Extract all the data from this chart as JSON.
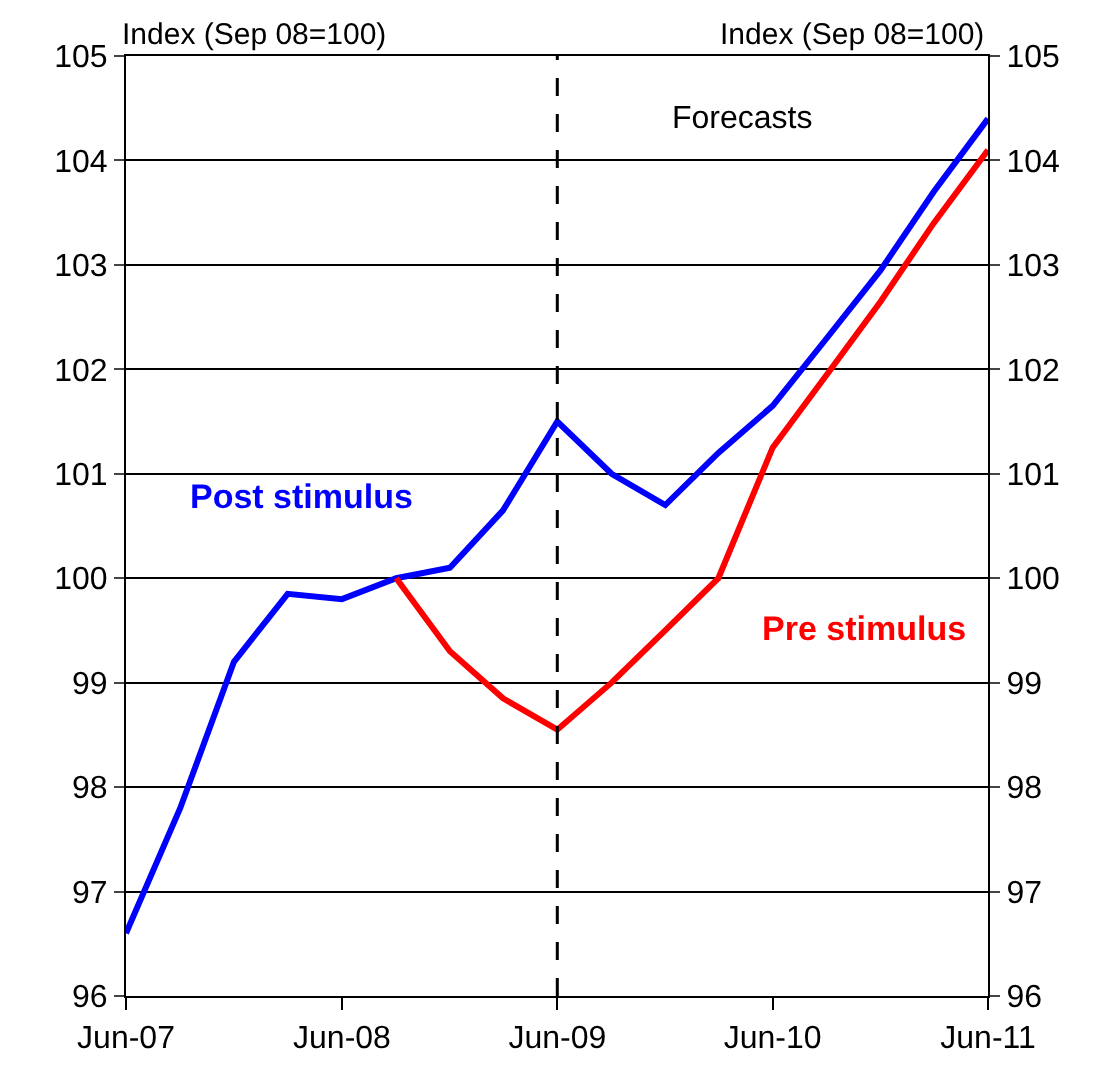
{
  "chart_data": {
    "type": "line",
    "ylabel": "Index (Sep 08=100)",
    "y2label": "Index (Sep 08=100)",
    "x": [
      "2007-06",
      "2007-09",
      "2007-12",
      "2008-03",
      "2008-06",
      "2008-09",
      "2008-12",
      "2009-03",
      "2009-06",
      "2009-09",
      "2009-12",
      "2010-03",
      "2010-06",
      "2010-09",
      "2010-12",
      "2011-03",
      "2011-06"
    ],
    "series": [
      {
        "name": "Post stimulus",
        "color": "#0000ff",
        "values": [
          96.6,
          97.8,
          99.2,
          99.85,
          99.8,
          100.0,
          100.1,
          100.65,
          101.5,
          101.0,
          100.7,
          101.2,
          101.65,
          102.3,
          102.95,
          103.7,
          104.4
        ]
      },
      {
        "name": "Pre stimulus",
        "color": "#ff0000",
        "values": [
          null,
          null,
          null,
          null,
          null,
          100.0,
          99.3,
          98.85,
          98.55,
          99.0,
          99.5,
          100.0,
          101.25,
          101.95,
          102.65,
          103.4,
          104.1
        ]
      }
    ],
    "xlim": [
      "2007-06",
      "2011-06"
    ],
    "xticks": [
      {
        "value": "2007-06",
        "label": "Jun-07"
      },
      {
        "value": "2008-06",
        "label": "Jun-08"
      },
      {
        "value": "2009-06",
        "label": "Jun-09"
      },
      {
        "value": "2010-06",
        "label": "Jun-10"
      },
      {
        "value": "2011-06",
        "label": "Jun-11"
      }
    ],
    "ylim": [
      96,
      105
    ],
    "yticks": [
      96,
      97,
      98,
      99,
      100,
      101,
      102,
      103,
      104,
      105
    ],
    "y2lim": [
      96,
      105
    ],
    "y2ticks": [
      96,
      97,
      98,
      99,
      100,
      101,
      102,
      103,
      104,
      105
    ],
    "grid": "y",
    "legend": false,
    "marker": "none",
    "line_style": "solid",
    "ref_lines": [
      {
        "axis": "x",
        "value": "2009-06",
        "label": "Forecasts",
        "color": "#000000",
        "line_style": "dashed"
      }
    ]
  }
}
